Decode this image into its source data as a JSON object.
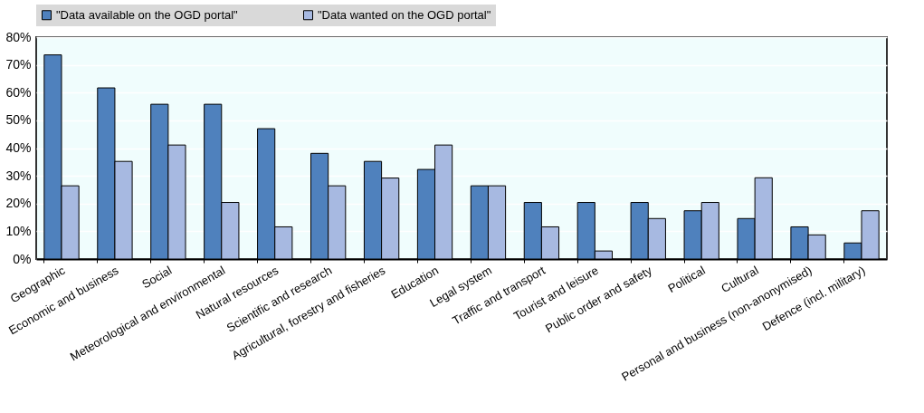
{
  "chart_data": {
    "type": "bar",
    "categories": [
      "Geographic",
      "Economic and business",
      "Social",
      "Meteorological and environmental",
      "Natural resources",
      "Scientific and research",
      "Agricultural, forestry and fisheries",
      "Education",
      "Legal system",
      "Traffic and transport",
      "Tourist and leisure",
      "Public order and safety",
      "Political",
      "Cultural",
      "Personal and business (non-anonymised)",
      "Defence (incl. military)"
    ],
    "series": [
      {
        "name": "\"Data available on the OGD portal\"",
        "color": "#4f81bd",
        "values": [
          73.6,
          61.7,
          55.8,
          55.8,
          47.0,
          38.1,
          35.2,
          32.3,
          26.4,
          20.4,
          20.4,
          20.4,
          17.4,
          14.6,
          11.6,
          5.8
        ]
      },
      {
        "name": "\"Data wanted on the OGD portal\"",
        "color": "#a7b9e1",
        "values": [
          26.4,
          35.2,
          41.1,
          20.4,
          11.6,
          26.4,
          29.2,
          41.1,
          26.4,
          11.6,
          2.9,
          14.6,
          20.4,
          29.3,
          8.7,
          17.4
        ]
      }
    ],
    "ylim": [
      0,
      80
    ],
    "yticks": [
      {
        "value": 0,
        "label": "0%"
      },
      {
        "value": 10,
        "label": "10%"
      },
      {
        "value": 20,
        "label": "20%"
      },
      {
        "value": 30,
        "label": "30%"
      },
      {
        "value": 40,
        "label": "40%"
      },
      {
        "value": 50,
        "label": "50%"
      },
      {
        "value": 60,
        "label": "60%"
      },
      {
        "value": 70,
        "label": "70%"
      },
      {
        "value": 80,
        "label": "80%"
      }
    ],
    "grid": "y",
    "legend": "top"
  }
}
